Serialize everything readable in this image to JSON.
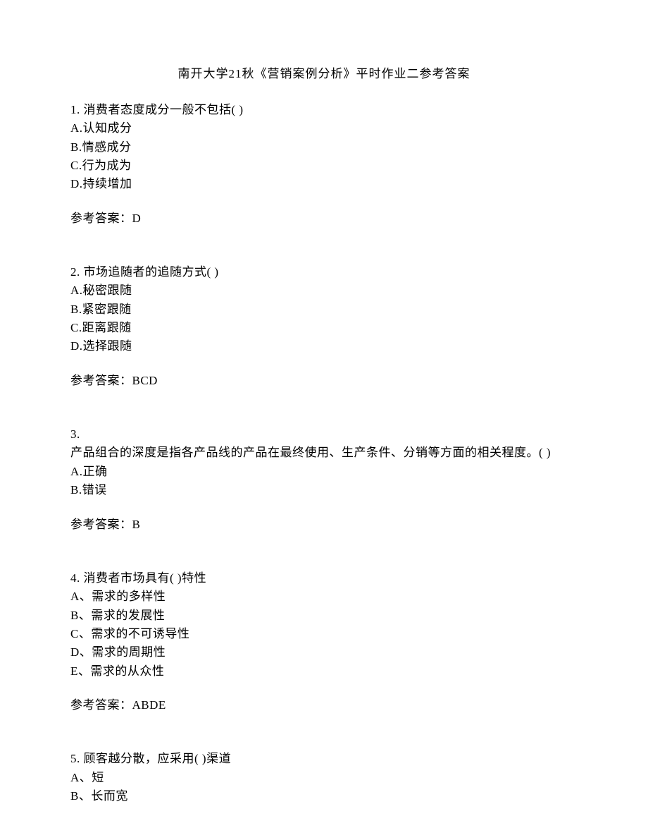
{
  "title": "南开大学21秋《营销案例分析》平时作业二参考答案",
  "questions": [
    {
      "stem": "1. 消费者态度成分一般不包括(  )",
      "options": [
        "A.认知成分",
        "B.情感成分",
        "C.行为成为",
        "D.持续增加"
      ],
      "answer_label": "参考答案：D"
    },
    {
      "stem": "2. 市场追随者的追随方式(  )",
      "options": [
        "A.秘密跟随",
        "B.紧密跟随",
        "C.距离跟随",
        "D.选择跟随"
      ],
      "answer_label": "参考答案：BCD"
    },
    {
      "stem_num": "3.",
      "stem_text": "产品组合的深度是指各产品线的产品在最终使用、生产条件、分销等方面的相关程度。(  )",
      "options": [
        "A.正确",
        "B.错误"
      ],
      "answer_label": "参考答案：B"
    },
    {
      "stem": "4. 消费者市场具有(  )特性",
      "options": [
        "A、需求的多样性",
        "B、需求的发展性",
        "C、需求的不可诱导性",
        "D、需求的周期性",
        "E、需求的从众性"
      ],
      "answer_label": "参考答案：ABDE"
    },
    {
      "stem": "5. 顾客越分散，应采用(  )渠道",
      "options": [
        "A、短",
        "B、长而宽"
      ]
    }
  ]
}
